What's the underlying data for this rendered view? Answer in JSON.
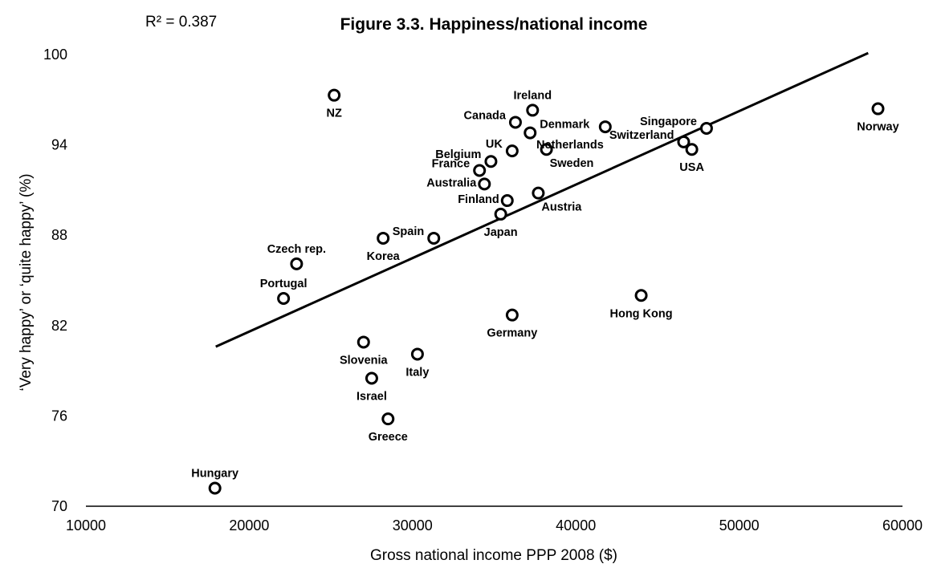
{
  "chart_data": {
    "type": "scatter",
    "title": "Figure 3.3. Happiness/national income",
    "annotation": "R² = 0.387",
    "xlabel": "Gross national income PPP 2008 ($)",
    "ylabel": "‘Very happy’ or ‘quite happy’ (%)",
    "xlim": [
      10000,
      60000
    ],
    "ylim": [
      70,
      100
    ],
    "x_ticks": [
      "10000",
      "20000",
      "30000",
      "40000",
      "50000",
      "60000"
    ],
    "y_ticks": [
      "70",
      "76",
      "82",
      "88",
      "94",
      "100"
    ],
    "grid": false,
    "legend": "none",
    "trendline": {
      "x": [
        17950,
        57900
      ],
      "y": [
        80.6,
        100.1
      ]
    },
    "points": [
      {
        "label": "NZ",
        "x": 25200,
        "y": 97.3,
        "label_pos": "below"
      },
      {
        "label": "Ireland",
        "x": 37350,
        "y": 96.3,
        "label_pos": "above"
      },
      {
        "label": "Canada",
        "x": 36300,
        "y": 95.5,
        "label_pos": "above-left"
      },
      {
        "label": "Denmark",
        "x": 37200,
        "y": 94.8,
        "label_pos": "above-right"
      },
      {
        "label": "UK",
        "x": 36100,
        "y": 93.6,
        "label_pos": "above-left"
      },
      {
        "label": "Sweden",
        "x": 38200,
        "y": 93.7,
        "label_pos": "below-right"
      },
      {
        "label": "Netherlands",
        "x": 41800,
        "y": 95.2,
        "label_pos": "below-left"
      },
      {
        "label": "Singapore",
        "x": 48000,
        "y": 95.1,
        "label_pos": "above-left"
      },
      {
        "label": "Switzerland",
        "x": 46600,
        "y": 94.2,
        "label_pos": "above-left"
      },
      {
        "label": "USA",
        "x": 47100,
        "y": 93.7,
        "label_pos": "below"
      },
      {
        "label": "Norway",
        "x": 58500,
        "y": 96.4,
        "label_pos": "below"
      },
      {
        "label": "Belgium",
        "x": 34800,
        "y": 92.9,
        "label_pos": "above-left"
      },
      {
        "label": "France",
        "x": 34100,
        "y": 92.3,
        "label_pos": "above-left"
      },
      {
        "label": "Australia",
        "x": 34400,
        "y": 91.4,
        "label_pos": "left"
      },
      {
        "label": "Finland",
        "x": 35800,
        "y": 90.3,
        "label_pos": "left"
      },
      {
        "label": "Austria",
        "x": 37700,
        "y": 90.8,
        "label_pos": "below-right"
      },
      {
        "label": "Japan",
        "x": 35400,
        "y": 89.4,
        "label_pos": "below"
      },
      {
        "label": "Spain",
        "x": 31300,
        "y": 87.8,
        "label_pos": "above-left"
      },
      {
        "label": "Korea",
        "x": 28200,
        "y": 87.8,
        "label_pos": "below"
      },
      {
        "label": "Czech rep.",
        "x": 22900,
        "y": 86.1,
        "label_pos": "above"
      },
      {
        "label": "Portugal",
        "x": 22100,
        "y": 83.8,
        "label_pos": "above"
      },
      {
        "label": "Hong Kong",
        "x": 44000,
        "y": 84.0,
        "label_pos": "below"
      },
      {
        "label": "Germany",
        "x": 36100,
        "y": 82.7,
        "label_pos": "below"
      },
      {
        "label": "Slovenia",
        "x": 27000,
        "y": 80.9,
        "label_pos": "below"
      },
      {
        "label": "Italy",
        "x": 30300,
        "y": 80.1,
        "label_pos": "below"
      },
      {
        "label": "Israel",
        "x": 27500,
        "y": 78.5,
        "label_pos": "below"
      },
      {
        "label": "Greece",
        "x": 28500,
        "y": 75.8,
        "label_pos": "below"
      },
      {
        "label": "Hungary",
        "x": 17900,
        "y": 71.2,
        "label_pos": "above"
      }
    ]
  }
}
